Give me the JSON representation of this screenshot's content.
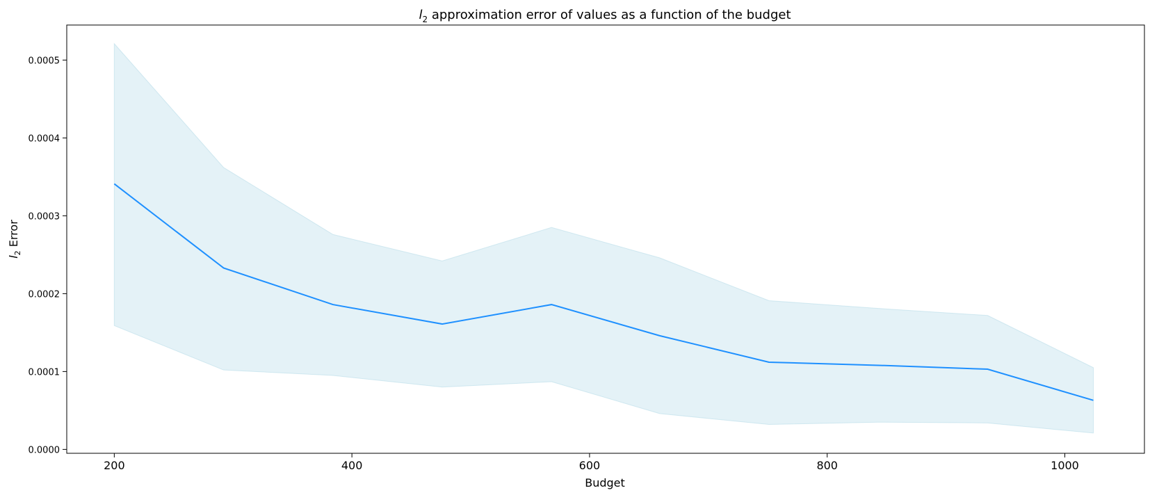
{
  "chart_data": {
    "type": "line",
    "title": {
      "var": "l",
      "sub": "2",
      "text": " approximation error of values as a function of the budget"
    },
    "xlabel": "Budget",
    "ylabel": {
      "var": "l",
      "sub": "2",
      "text": " Error"
    },
    "xlim": [
      160,
      1067
    ],
    "ylim": [
      -5e-06,
      0.000545
    ],
    "xticks": [
      200,
      400,
      600,
      800,
      1000
    ],
    "xtick_labels": [
      "200",
      "400",
      "600",
      "800",
      "1000"
    ],
    "yticks": [
      0,
      0.0001,
      0.0002,
      0.0003,
      0.0004,
      0.0005
    ],
    "ytick_labels": [
      "0.0000",
      "0.0001",
      "0.0002",
      "0.0003",
      "0.0004",
      "0.0005"
    ],
    "grid": false,
    "series": [
      {
        "x": [
          200,
          292,
          384,
          476,
          568,
          659,
          751,
          843,
          935,
          1024
        ],
        "y": [
          0.000341,
          0.000233,
          0.000186,
          0.000161,
          0.000186,
          0.000146,
          0.000112,
          0.000108,
          0.000103,
          6.3e-05
        ],
        "lower": [
          0.000159,
          0.000102,
          9.5e-05,
          8e-05,
          8.7e-05,
          4.6e-05,
          3.2e-05,
          3.5e-05,
          3.4e-05,
          2.1e-05
        ],
        "upper": [
          0.000521,
          0.000362,
          0.000276,
          0.000242,
          0.000285,
          0.000246,
          0.000191,
          0.000181,
          0.000172,
          0.000105
        ],
        "color": "#1e90ff",
        "band_color": "#add8e6"
      }
    ]
  }
}
